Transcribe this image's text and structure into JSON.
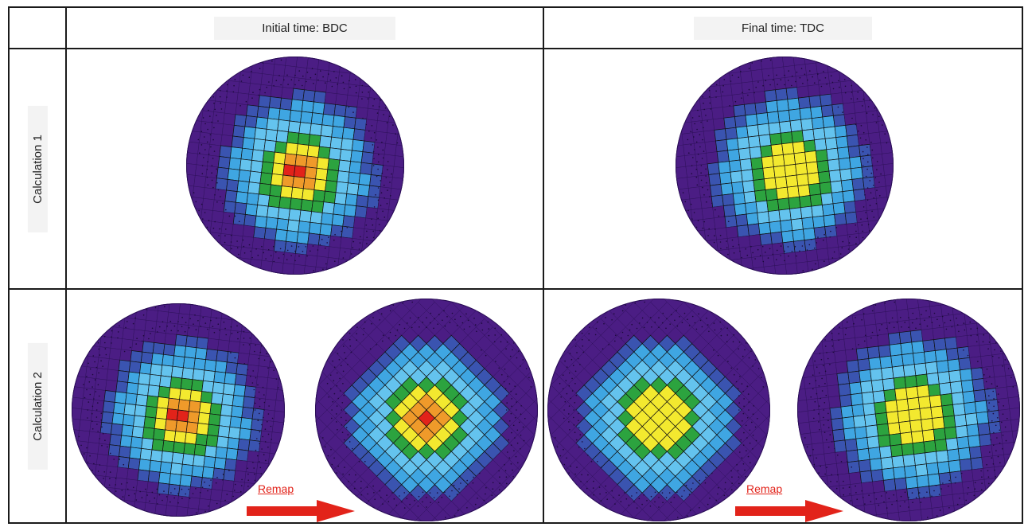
{
  "columns": [
    "Initial time: BDC",
    "Final time: TDC"
  ],
  "rows": [
    "Calculation 1",
    "Calculation 2"
  ],
  "remap_label": "Remap",
  "colors": {
    "ring_outer": "#4b1d84",
    "ring_mid": "#3a54b0",
    "cyan": "#3fa6e2",
    "light_blue": "#64c3ee",
    "green": "#2ca33f",
    "yellow": "#f3e92f",
    "orange": "#ef9a2a",
    "red": "#e2231a",
    "arrow": "#e2231a"
  },
  "plots": [
    {
      "id": "calc1-bdc",
      "style": "distorted",
      "peak": "red"
    },
    {
      "id": "calc1-tdc",
      "style": "distorted",
      "peak": "yellow"
    },
    {
      "id": "calc2-bdc-before",
      "style": "distorted",
      "peak": "red"
    },
    {
      "id": "calc2-bdc-after",
      "style": "regular",
      "peak": "red"
    },
    {
      "id": "calc2-tdc-before",
      "style": "regular",
      "peak": "yellow"
    },
    {
      "id": "calc2-tdc-after",
      "style": "distorted",
      "peak": "yellow"
    }
  ]
}
